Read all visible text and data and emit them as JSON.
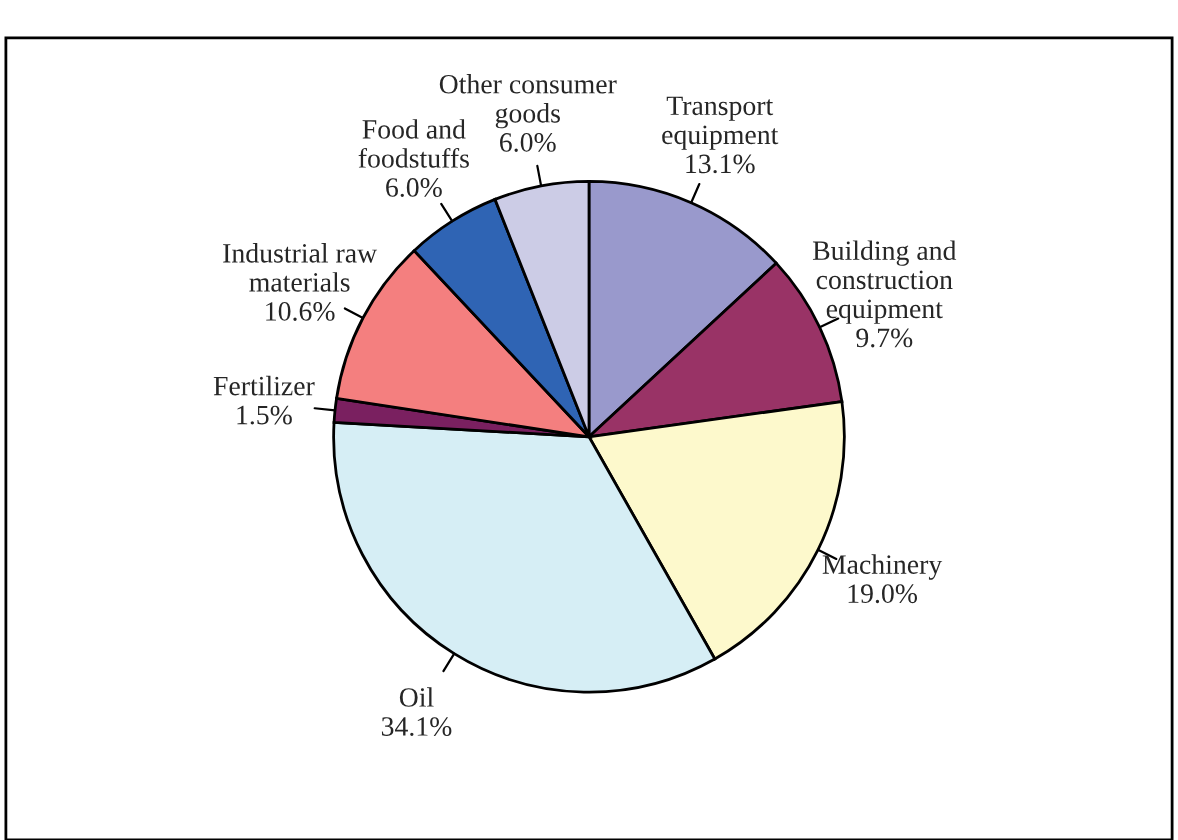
{
  "chart_data": {
    "type": "pie",
    "categories": [
      "Transport equipment",
      "Building and construction equipment",
      "Machinery",
      "Oil",
      "Fertilizer",
      "Industrial raw materials",
      "Food and foodstuffs",
      "Other consumer goods"
    ],
    "values": [
      13.1,
      9.7,
      19.0,
      34.1,
      1.5,
      10.6,
      6.0,
      6.0
    ],
    "colors": [
      "#9999cc",
      "#993366",
      "#fdf9cc",
      "#d6eef5",
      "#7a2060",
      "#f47f7f",
      "#2f64b4",
      "#cccce6"
    ],
    "value_labels": [
      "13.1%",
      "9.7%",
      "19.0%",
      "34.1%",
      "1.5%",
      "10.6%",
      "6.0%",
      "6.0%"
    ],
    "legend": false
  }
}
